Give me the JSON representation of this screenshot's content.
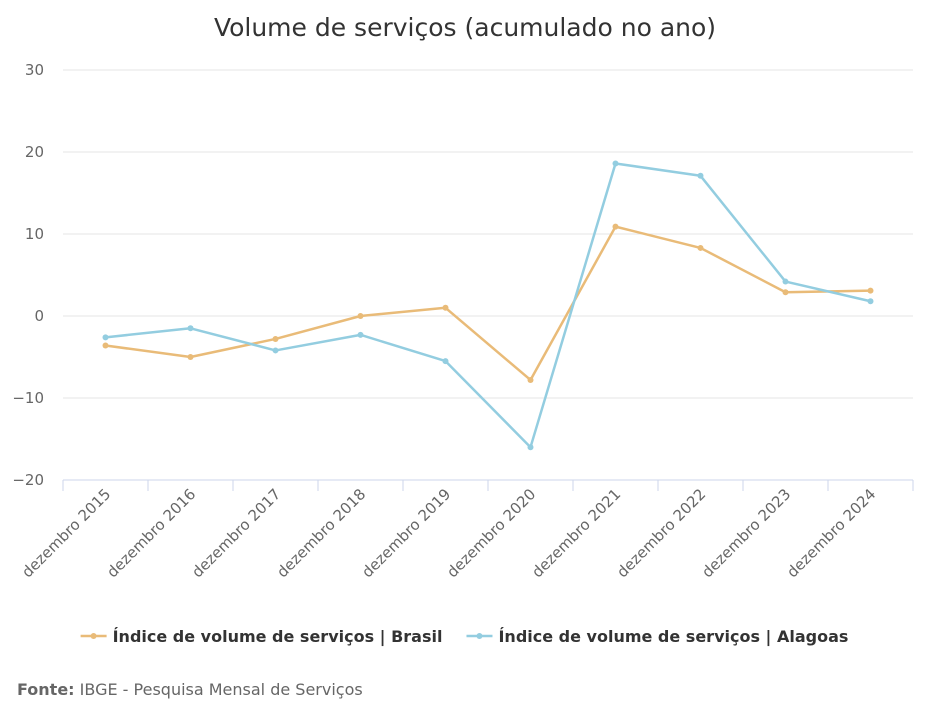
{
  "chart_data": {
    "type": "line",
    "title": "Volume de serviços (acumulado no ano)",
    "categories": [
      "dezembro 2015",
      "dezembro 2016",
      "dezembro 2017",
      "dezembro 2018",
      "dezembro 2019",
      "dezembro 2020",
      "dezembro 2021",
      "dezembro 2022",
      "dezembro 2023",
      "dezembro 2024"
    ],
    "series": [
      {
        "name": "Índice de volume de serviços | Brasil",
        "color": "#e9bb78",
        "values": [
          -3.6,
          -5.0,
          -2.8,
          0.0,
          1.0,
          -7.8,
          10.9,
          8.3,
          2.9,
          3.1
        ]
      },
      {
        "name": "Índice de volume de serviços | Alagoas",
        "color": "#93cde0",
        "values": [
          -2.6,
          -1.5,
          -4.2,
          -2.3,
          -5.5,
          -16.0,
          18.6,
          17.1,
          4.2,
          1.8
        ]
      }
    ],
    "yticks": [
      "30",
      "20",
      "10",
      "0",
      "−10",
      "−20"
    ],
    "ylim": [
      -20,
      30
    ],
    "grid": true,
    "legend_position": "bottom-center",
    "xlabel": "",
    "ylabel": ""
  },
  "source": {
    "label": "Fonte:",
    "text": "IBGE - Pesquisa Mensal de Serviços"
  }
}
